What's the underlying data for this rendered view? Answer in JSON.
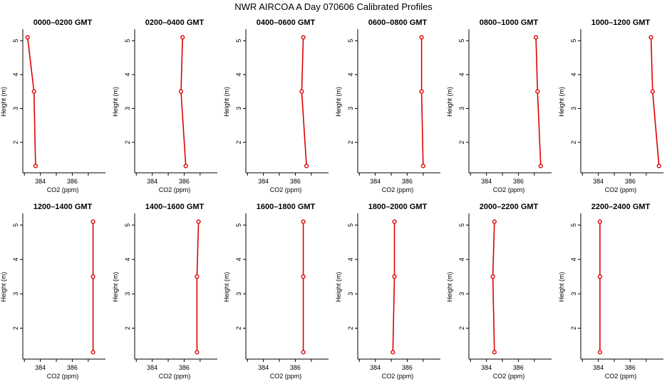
{
  "title": "NWR AIRCOA A  Day 070606  Calibrated Profiles",
  "colors": {
    "series": "#dd0000",
    "axis": "#000000",
    "background": "#ffffff"
  },
  "chart_data": [
    {
      "type": "line",
      "title": "0000–0200 GMT",
      "xlabel": "CO2 (ppm)",
      "ylabel": "Height (m)",
      "xticks": [
        "384",
        "386"
      ],
      "yticks": [
        "2",
        "3",
        "4",
        "5"
      ],
      "xlim": [
        382.9,
        387.9
      ],
      "ylim": [
        1.1,
        5.3
      ],
      "x": [
        383.2,
        383.6,
        383.7
      ],
      "y": [
        5.1,
        3.5,
        1.3
      ]
    },
    {
      "type": "line",
      "title": "0200–0400 GMT",
      "xlabel": "CO2 (ppm)",
      "ylabel": "Height (m)",
      "xticks": [
        "384",
        "386"
      ],
      "yticks": [
        "2",
        "3",
        "4",
        "5"
      ],
      "xlim": [
        382.9,
        387.9
      ],
      "ylim": [
        1.1,
        5.3
      ],
      "x": [
        385.9,
        385.8,
        386.1
      ],
      "y": [
        5.1,
        3.5,
        1.3
      ]
    },
    {
      "type": "line",
      "title": "0400–0600 GMT",
      "xlabel": "CO2 (ppm)",
      "ylabel": "Height (m)",
      "xticks": [
        "384",
        "386"
      ],
      "yticks": [
        "2",
        "3",
        "4",
        "5"
      ],
      "xlim": [
        382.9,
        387.9
      ],
      "ylim": [
        1.1,
        5.3
      ],
      "x": [
        386.5,
        386.4,
        386.7
      ],
      "y": [
        5.1,
        3.5,
        1.3
      ]
    },
    {
      "type": "line",
      "title": "0600–0800 GMT",
      "xlabel": "CO2 (ppm)",
      "ylabel": "Height (m)",
      "xticks": [
        "384",
        "386"
      ],
      "yticks": [
        "2",
        "3",
        "4",
        "5"
      ],
      "xlim": [
        382.9,
        387.9
      ],
      "ylim": [
        1.1,
        5.3
      ],
      "x": [
        386.9,
        386.9,
        387.0
      ],
      "y": [
        5.1,
        3.5,
        1.3
      ]
    },
    {
      "type": "line",
      "title": "0800–1000 GMT",
      "xlabel": "CO2 (ppm)",
      "ylabel": "Height (m)",
      "xticks": [
        "384",
        "386"
      ],
      "yticks": [
        "2",
        "3",
        "4",
        "5"
      ],
      "xlim": [
        382.9,
        387.9
      ],
      "ylim": [
        1.1,
        5.3
      ],
      "x": [
        387.1,
        387.2,
        387.4
      ],
      "y": [
        5.1,
        3.5,
        1.3
      ]
    },
    {
      "type": "line",
      "title": "1000–1200 GMT",
      "xlabel": "CO2 (ppm)",
      "ylabel": "Height (m)",
      "xticks": [
        "384",
        "386"
      ],
      "yticks": [
        "2",
        "3",
        "4",
        "5"
      ],
      "xlim": [
        382.9,
        387.9
      ],
      "ylim": [
        1.1,
        5.3
      ],
      "x": [
        387.3,
        387.4,
        387.8
      ],
      "y": [
        5.1,
        3.5,
        1.3
      ]
    },
    {
      "type": "line",
      "title": "1200–1400 GMT",
      "xlabel": "CO2 (ppm)",
      "ylabel": "Height (m)",
      "xticks": [
        "384",
        "386"
      ],
      "yticks": [
        "2",
        "3",
        "4",
        "5"
      ],
      "xlim": [
        382.9,
        387.9
      ],
      "ylim": [
        1.1,
        5.3
      ],
      "x": [
        387.3,
        387.3,
        387.3
      ],
      "y": [
        5.1,
        3.5,
        1.3
      ]
    },
    {
      "type": "line",
      "title": "1400–1600 GMT",
      "xlabel": "CO2 (ppm)",
      "ylabel": "Height (m)",
      "xticks": [
        "384",
        "386"
      ],
      "yticks": [
        "2",
        "3",
        "4",
        "5"
      ],
      "xlim": [
        382.9,
        387.9
      ],
      "ylim": [
        1.1,
        5.3
      ],
      "x": [
        386.9,
        386.8,
        386.8
      ],
      "y": [
        5.1,
        3.5,
        1.3
      ]
    },
    {
      "type": "line",
      "title": "1600–1800 GMT",
      "xlabel": "CO2 (ppm)",
      "ylabel": "Height (m)",
      "xticks": [
        "384",
        "386"
      ],
      "yticks": [
        "2",
        "3",
        "4",
        "5"
      ],
      "xlim": [
        382.9,
        387.9
      ],
      "ylim": [
        1.1,
        5.3
      ],
      "x": [
        386.5,
        386.5,
        386.5
      ],
      "y": [
        5.1,
        3.5,
        1.3
      ]
    },
    {
      "type": "line",
      "title": "1800–2000 GMT",
      "xlabel": "CO2 (ppm)",
      "ylabel": "Height (m)",
      "xticks": [
        "384",
        "386"
      ],
      "yticks": [
        "2",
        "3",
        "4",
        "5"
      ],
      "xlim": [
        382.9,
        387.9
      ],
      "ylim": [
        1.1,
        5.3
      ],
      "x": [
        385.2,
        385.2,
        385.1
      ],
      "y": [
        5.1,
        3.5,
        1.3
      ]
    },
    {
      "type": "line",
      "title": "2000–2200 GMT",
      "xlabel": "CO2 (ppm)",
      "ylabel": "Height (m)",
      "xticks": [
        "384",
        "386"
      ],
      "yticks": [
        "2",
        "3",
        "4",
        "5"
      ],
      "xlim": [
        382.9,
        387.9
      ],
      "ylim": [
        1.1,
        5.3
      ],
      "x": [
        384.5,
        384.4,
        384.5
      ],
      "y": [
        5.1,
        3.5,
        1.3
      ]
    },
    {
      "type": "line",
      "title": "2200–2400 GMT",
      "xlabel": "CO2 (ppm)",
      "ylabel": "Height (m)",
      "xticks": [
        "384",
        "386"
      ],
      "yticks": [
        "2",
        "3",
        "4",
        "5"
      ],
      "xlim": [
        382.9,
        387.9
      ],
      "ylim": [
        1.1,
        5.3
      ],
      "x": [
        384.1,
        384.1,
        384.1
      ],
      "y": [
        5.1,
        3.5,
        1.3
      ]
    }
  ]
}
